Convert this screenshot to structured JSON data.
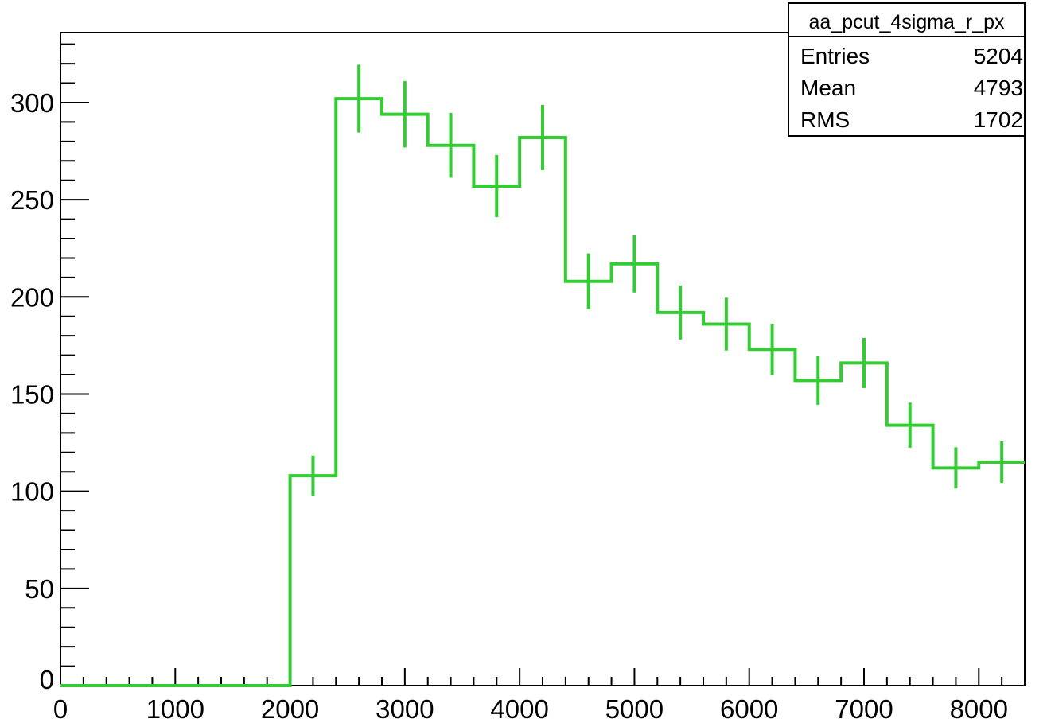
{
  "chart_data": {
    "type": "histogram",
    "title": "",
    "xlabel": "",
    "ylabel": "",
    "xlim": [
      0,
      8400
    ],
    "ylim": [
      0,
      336
    ],
    "grid": false,
    "bin_edges": [
      0,
      400,
      800,
      1200,
      1600,
      2000,
      2400,
      2800,
      3200,
      3600,
      4000,
      4400,
      4800,
      5200,
      5600,
      6000,
      6400,
      6800,
      7200,
      7600,
      8000,
      8400
    ],
    "values": [
      0,
      0,
      0,
      0,
      0,
      108,
      302,
      294,
      278,
      257,
      282,
      208,
      217,
      192,
      186,
      173,
      157,
      166,
      134,
      112,
      115
    ],
    "errors": [
      0,
      0,
      0,
      0,
      0,
      10.4,
      17.4,
      17.1,
      16.7,
      16.0,
      16.8,
      14.4,
      14.7,
      13.9,
      13.6,
      13.2,
      12.5,
      12.9,
      11.6,
      10.6,
      10.7
    ],
    "x_ticks": [
      0,
      1000,
      2000,
      3000,
      4000,
      5000,
      6000,
      7000,
      8000
    ],
    "y_ticks": [
      0,
      50,
      100,
      150,
      200,
      250,
      300
    ],
    "line_color": "#33cc33",
    "stats_box": {
      "placement": "top-right",
      "name": "aa_pcut_4sigma_r_px",
      "rows": [
        {
          "label": "Entries",
          "value": "5204"
        },
        {
          "label": "Mean",
          "value": "4793"
        },
        {
          "label": "RMS",
          "value": "1702"
        }
      ]
    }
  }
}
